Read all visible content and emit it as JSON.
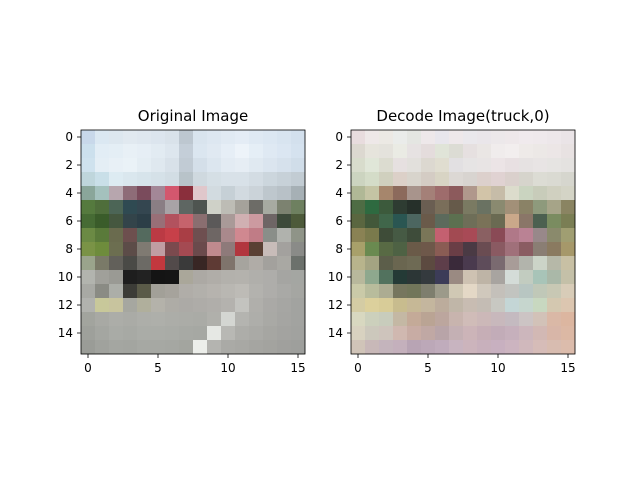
{
  "chart_data": [
    {
      "type": "heatmap",
      "title": "Original Image",
      "xticks": [
        "0",
        "5",
        "10",
        "15"
      ],
      "yticks": [
        "0",
        "2",
        "4",
        "6",
        "8",
        "10",
        "12",
        "14"
      ],
      "xlim": [
        -0.5,
        15.5
      ],
      "ylim": [
        15.5,
        -0.5
      ],
      "grid": false,
      "rows": [
        [
          "#c8d8ea",
          "#dbe8f2",
          "#dde7ef",
          "#e1e9f0",
          "#dfe7ef",
          "#dce5ee",
          "#d9e2ea",
          "#bdc7d0",
          "#d9e4ee",
          "#dde7f1",
          "#e1eaf3",
          "#e4ecf5",
          "#dfe9f3",
          "#dce7f2",
          "#d8e4f0",
          "#d3e0ed"
        ],
        [
          "#cce0ed",
          "#e2edf5",
          "#e4eef5",
          "#e8f0f6",
          "#e6eef5",
          "#e2ebf2",
          "#dde6ee",
          "#c4ced8",
          "#dbe6f0",
          "#e0e9f2",
          "#e6eef6",
          "#edf3f9",
          "#e5eef6",
          "#dfe9f3",
          "#dbe6f2",
          "#d5e2ef"
        ],
        [
          "#cfe2ee",
          "#e4eef5",
          "#e8f0f6",
          "#eaf2f7",
          "#e4edf3",
          "#dfe8ef",
          "#d8e1e9",
          "#c1cbd4",
          "#d4dfe9",
          "#dce6ef",
          "#e3ebf3",
          "#e6edf4",
          "#e0e9f1",
          "#dbe5ef",
          "#d6e1ec",
          "#d0dde9"
        ],
        [
          "#bfd6dc",
          "#c9dfe8",
          "#ddebf2",
          "#dae7ee",
          "#d7e4eb",
          "#d5e1e8",
          "#d2dde4",
          "#b8c3c9",
          "#cfd9df",
          "#d5dfe5",
          "#d8e1e8",
          "#d8e1e8",
          "#d3dce3",
          "#ccd6dd",
          "#c7d1d8",
          "#c2ccd3"
        ],
        [
          "#8aa69a",
          "#a4c1bd",
          "#b7a6ae",
          "#8e6c78",
          "#7a4b5c",
          "#a38797",
          "#d3576e",
          "#8a2f3c",
          "#e0c7cb",
          "#d2dbe0",
          "#c6d0d6",
          "#d2dae0",
          "#cbd3d9",
          "#bec7cd",
          "#b8c1c7",
          "#a6b0b5"
        ],
        [
          "#557a3e",
          "#4f6e3b",
          "#4c6556",
          "#2f4a52",
          "#344650",
          "#8a7e84",
          "#a8a3a6",
          "#5e6662",
          "#4e5450",
          "#cfd1c8",
          "#bdbcb5",
          "#a5a29b",
          "#6d6c67",
          "#a7aaa1",
          "#7c8270",
          "#6e8060"
        ],
        [
          "#466b34",
          "#3a5c2a",
          "#45573f",
          "#33444a",
          "#2c3e47",
          "#986f77",
          "#b2525e",
          "#c6636c",
          "#8a6e70",
          "#5b5959",
          "#a99a98",
          "#d0b0b2",
          "#cc9aa0",
          "#6e6565",
          "#3d4a3a",
          "#4d5a3a"
        ],
        [
          "#6b8a44",
          "#5a7a3a",
          "#6a6b4e",
          "#6d4f4e",
          "#546a5e",
          "#bb3a44",
          "#c74049",
          "#a93e45",
          "#6e4f50",
          "#6e6664",
          "#a9898c",
          "#d08890",
          "#c07c86",
          "#8a8e89",
          "#b0b2ad",
          "#8f9488"
        ],
        [
          "#7a9346",
          "#6e8c3c",
          "#6c6e50",
          "#5c4c48",
          "#7f7a72",
          "#c09ea3",
          "#7b4a4e",
          "#a44a52",
          "#6a4a4c",
          "#c08a8e",
          "#8e7a7a",
          "#b2363e",
          "#5a4034",
          "#c8bcb9",
          "#a3a19e",
          "#8a8b88"
        ],
        [
          "#9aa48c",
          "#7a7a68",
          "#62605a",
          "#4a4a46",
          "#6c6a65",
          "#c2383e",
          "#524a4a",
          "#3a3a3a",
          "#382624",
          "#5e3a34",
          "#7f746c",
          "#a6a49e",
          "#b0aca7",
          "#a3a19d",
          "#a9a8a3",
          "#6c716c"
        ],
        [
          "#b2b4ae",
          "#a0a09a",
          "#9a9a94",
          "#1e1e1e",
          "#222222",
          "#141414",
          "#151515",
          "#aaa79a",
          "#aca9a4",
          "#b0ada8",
          "#b3b1ac",
          "#b4b2ad",
          "#b0afab",
          "#aeadaa",
          "#a5a5a2",
          "#a4a6a2"
        ],
        [
          "#a8a9a4",
          "#8a8b84",
          "#acaea8",
          "#3c3c37",
          "#5a5a48",
          "#a2a098",
          "#a6a39c",
          "#b0ada8",
          "#b2b0ab",
          "#b6b3ae",
          "#b9b7b2",
          "#bdbbb6",
          "#b3b2ae",
          "#aeadaa",
          "#a9a9a6",
          "#a5a6a2"
        ],
        [
          "#b1b2ae",
          "#c8c89a",
          "#c8c49e",
          "#a6a7a0",
          "#b0af9c",
          "#b4b2aa",
          "#aeaca6",
          "#acaaa6",
          "#aeaca8",
          "#b0aeaa",
          "#b4b2ae",
          "#c3c3bf",
          "#b0afab",
          "#aaa9a6",
          "#a6a6a3",
          "#a2a3a0"
        ],
        [
          "#a2a49e",
          "#a8a9a4",
          "#acada8",
          "#aaaba6",
          "#adaea9",
          "#aeafaa",
          "#acada8",
          "#abaca7",
          "#aaaba6",
          "#b0b0ab",
          "#d4d6d2",
          "#b4b4b0",
          "#aeaeaa",
          "#a9a9a5",
          "#a5a5a2",
          "#a2a3a0"
        ],
        [
          "#9ea09b",
          "#a4a6a1",
          "#a9aba6",
          "#a7a9a4",
          "#aaaca7",
          "#aaaca7",
          "#a9aba6",
          "#a7a9a4",
          "#a6a8a3",
          "#e6e8e4",
          "#b8b8b4",
          "#adada9",
          "#aaaaa6",
          "#a6a6a2",
          "#a3a3a0",
          "#a1a29f"
        ],
        [
          "#9a9c97",
          "#a0a29d",
          "#a4a6a1",
          "#a3a5a0",
          "#a6a8a3",
          "#a6a8a3",
          "#a5a7a2",
          "#a3a59f",
          "#eceeea",
          "#b4b4b0",
          "#aaaaa6",
          "#a8a8a4",
          "#a5a5a1",
          "#a3a39f",
          "#a0a09d",
          "#9e9f9c"
        ]
      ]
    },
    {
      "type": "heatmap",
      "title": "Decode Image(truck,0)",
      "xticks": [
        "0",
        "5",
        "10",
        "15"
      ],
      "yticks": [
        "0",
        "2",
        "4",
        "6",
        "8",
        "10",
        "12",
        "14"
      ],
      "xlim": [
        -0.5,
        15.5
      ],
      "ylim": [
        15.5,
        -0.5
      ],
      "grid": false,
      "rows": [
        [
          "#e8dcde",
          "#eee8e8",
          "#ece9e4",
          "#eaecea",
          "#e4e6e2",
          "#eee8ea",
          "#e8e6ec",
          "#eee8ea",
          "#eae8ec",
          "#eae6ea",
          "#ece8ea",
          "#eee8ea",
          "#f0eaed",
          "#efe9ec",
          "#ede7ea",
          "#eae4e7"
        ],
        [
          "#dcd8d0",
          "#e6e4dc",
          "#e4e2dc",
          "#eaebe4",
          "#e6e2e2",
          "#e4dcdc",
          "#e0e4d8",
          "#dcdcd4",
          "#e6e0e0",
          "#eae6e4",
          "#f0ecec",
          "#f2eeee",
          "#eeeae8",
          "#ece8e6",
          "#ece6e6",
          "#e8e2e2"
        ],
        [
          "#d8dccc",
          "#e0e6d8",
          "#dcdcd0",
          "#e6e0e0",
          "#e2e0dc",
          "#dcd8d0",
          "#e0ddd0",
          "#e2e0e2",
          "#e6e4e4",
          "#e8e4e4",
          "#ece4e6",
          "#e8e0e2",
          "#e6e2e2",
          "#e8e4e4",
          "#e6e4e2",
          "#e4e2e0"
        ],
        [
          "#ccd4c0",
          "#d4dcc8",
          "#d0d0be",
          "#dcd0c8",
          "#d8d4cc",
          "#d4ccc4",
          "#d8d4c4",
          "#dcd8d4",
          "#d8d4d0",
          "#dcd0cc",
          "#e0d2d2",
          "#dad0cc",
          "#d6d4cc",
          "#dcdcd4",
          "#dadad2",
          "#d6d6ce"
        ],
        [
          "#b0b896",
          "#c4c4a4",
          "#a6866c",
          "#8c6a5c",
          "#a8948c",
          "#a48078",
          "#9e6c6c",
          "#8c5a5c",
          "#b0988c",
          "#d2c4a8",
          "#c6bca8",
          "#dcdccc",
          "#cad4c0",
          "#c8ccba",
          "#d0d0c0",
          "#d4d4c6"
        ],
        [
          "#4e6c44",
          "#2e6a40",
          "#3c5a3c",
          "#2e3c32",
          "#26302a",
          "#6a5e52",
          "#7a6e5a",
          "#665a4a",
          "#7a7a62",
          "#6a7262",
          "#8a8a70",
          "#a29078",
          "#8a8266",
          "#8e9a7c",
          "#a6a488",
          "#8a8462"
        ],
        [
          "#5a6640",
          "#42583a",
          "#40664a",
          "#2a5652",
          "#4c6660",
          "#6a5a4a",
          "#5c6a5c",
          "#5c7050",
          "#6e6e58",
          "#7a7258",
          "#6a6a52",
          "#caa88a",
          "#8a7668",
          "#4c6050",
          "#7a8c60",
          "#7a7e54"
        ],
        [
          "#8a8254",
          "#7a7a4c",
          "#3e4c38",
          "#465a44",
          "#3e4c3a",
          "#7a7658",
          "#c46070",
          "#a24a52",
          "#a84a56",
          "#8a6062",
          "#8a4a56",
          "#b07888",
          "#ba8294",
          "#98888a",
          "#8a8a6c",
          "#a09e72"
        ],
        [
          "#a8a06a",
          "#6a8a50",
          "#586a44",
          "#4e6244",
          "#6a5a48",
          "#6e584a",
          "#8a5c54",
          "#6a3e46",
          "#4a3a44",
          "#6a4c52",
          "#8a5a62",
          "#a0707a",
          "#8a5c62",
          "#8a7e74",
          "#8a7a60",
          "#a6986a"
        ],
        [
          "#b8b48c",
          "#a4a482",
          "#5c5e4a",
          "#6a6650",
          "#6e6a54",
          "#5c4a40",
          "#5e3e4a",
          "#3a2a3a",
          "#4a3a4e",
          "#5e4c5a",
          "#7a6a70",
          "#a89c98",
          "#b2b4ac",
          "#ccd4c8",
          "#b6b8a8",
          "#c8c0a4"
        ],
        [
          "#b8b89c",
          "#8ea88e",
          "#52725e",
          "#243a36",
          "#2c3636",
          "#343a3e",
          "#3c3c58",
          "#9a8a82",
          "#cec2b2",
          "#beb4a6",
          "#a8a4a0",
          "#d4dcd8",
          "#c2ccc0",
          "#a8c4b8",
          "#aab8a8",
          "#c4c0a8"
        ],
        [
          "#cacaa8",
          "#b8bc9c",
          "#acac92",
          "#76765e",
          "#72765a",
          "#7e7e6e",
          "#9c9a8a",
          "#d0c8b4",
          "#e4d8c6",
          "#d0c8bc",
          "#c4c0ba",
          "#c2c4c0",
          "#b8c6c2",
          "#c0c8b8",
          "#c8c8b4",
          "#d8ccb8"
        ],
        [
          "#d4cca4",
          "#dcd09c",
          "#d8cc98",
          "#c8bc8e",
          "#c6b896",
          "#c4b69e",
          "#bcac9c",
          "#c0b6a8",
          "#c8bcb2",
          "#c4bcb4",
          "#c8c8c2",
          "#c4d6d6",
          "#c6d6ce",
          "#c8d8c0",
          "#d4c8b0",
          "#dcc6b0"
        ],
        [
          "#d8d8c0",
          "#ccd0bc",
          "#c8ccbc",
          "#c4b8a4",
          "#c4aa98",
          "#baa494",
          "#bca69e",
          "#c8b4ae",
          "#d0bcb8",
          "#ccb8b8",
          "#c8b8bc",
          "#c4bac0",
          "#ccc4c4",
          "#d2c2b8",
          "#dab8a6",
          "#dcb6a0"
        ],
        [
          "#d8d2c0",
          "#ccc8bc",
          "#cec4bc",
          "#d0b8b0",
          "#c8aca4",
          "#c0a8a4",
          "#b8a4a8",
          "#c4b0b4",
          "#ccb4b8",
          "#c6aeb6",
          "#c2acb8",
          "#c6b0bc",
          "#ccb6bc",
          "#d2b8b4",
          "#d8b6a8",
          "#dcb8a4"
        ],
        [
          "#d0c4b8",
          "#c8b8b8",
          "#c4b4bc",
          "#c4b0bc",
          "#b8a4b4",
          "#bca8b8",
          "#c0acbc",
          "#c8b4c0",
          "#ccb4bc",
          "#c8b0bc",
          "#c8b0c0",
          "#ccb4c0",
          "#d0b8bc",
          "#d6bcb8",
          "#d8bcb0",
          "#dcbcac"
        ]
      ]
    }
  ]
}
